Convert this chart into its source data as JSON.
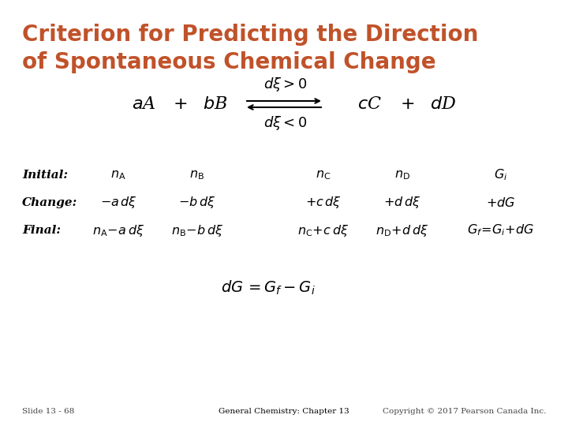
{
  "background_color": "#ffffff",
  "title_line1": "Criterion for Predicting the Direction",
  "title_line2": "of Spontaneous Chemical Change",
  "title_color": "#C0522A",
  "title_fontsize": 20,
  "body_color": "#000000",
  "footer_left": "Slide 13 - 68",
  "footer_center": "General Chemistry: Chapter 13",
  "footer_right": "Copyright © 2017 Pearson Canada Inc.",
  "footer_fontsize": 7.5
}
